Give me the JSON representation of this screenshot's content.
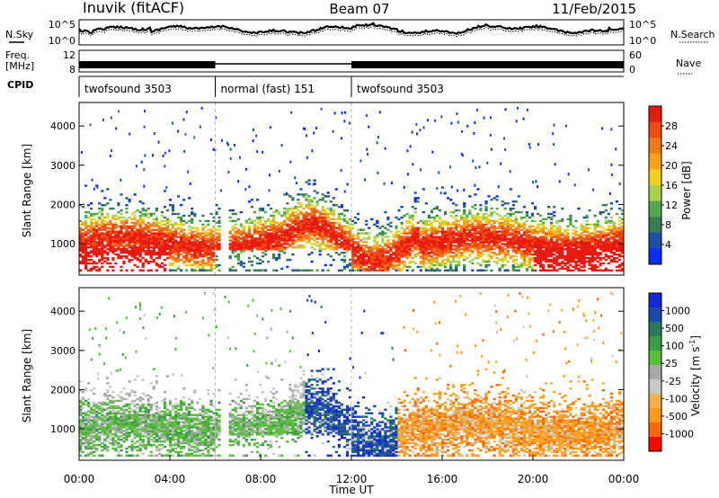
{
  "header": {
    "station": "Inuvik (fitACF)",
    "beam": "Beam 07",
    "date": "11/Feb/2015"
  },
  "colors": {
    "background": "#ffffff",
    "axis": "#000000",
    "power_scale": [
      "#0a2cff",
      "#1d4fa3",
      "#3b7a55",
      "#52a84a",
      "#a8d24a",
      "#f0d21a",
      "#f6a21a",
      "#f07a1a",
      "#ee4a14",
      "#e81a10"
    ],
    "velocity_scale": [
      "#ff0000",
      "#ff6a00",
      "#ff9a1a",
      "#f0b04a",
      "#c8c8c8",
      "#a8a8a8",
      "#58c038",
      "#3c9a48",
      "#2b7860",
      "#1d4aa8",
      "#1428d8"
    ]
  },
  "chart_data": [
    {
      "type": "line",
      "name": "noise-panel",
      "left_labels": [
        "N.Sky"
      ],
      "right_labels": [
        "N.Search"
      ],
      "left_ticks": [
        "10^5",
        "10^0"
      ],
      "right_ticks": [
        "10^5",
        "10^0"
      ],
      "x_range_hours": [
        0,
        24
      ]
    },
    {
      "type": "line",
      "name": "frequency-panel",
      "left_labels": [
        "Freq.",
        "[MHz]"
      ],
      "right_labels": [
        "Nave"
      ],
      "left_ticks": [
        "12",
        "8"
      ],
      "right_ticks": [
        "60",
        "0"
      ],
      "x_range_hours": [
        0,
        24
      ]
    },
    {
      "type": "table",
      "name": "cpid-bar",
      "label": "CPID",
      "segments": [
        {
          "start": 0,
          "end": 6,
          "text": "twofsound 3503"
        },
        {
          "start": 6,
          "end": 12,
          "text": "normal (fast) 151"
        },
        {
          "start": 12,
          "end": 24,
          "text": "twofsound 3503"
        }
      ]
    },
    {
      "type": "heatmap",
      "name": "power-panel",
      "xlabel": "",
      "ylabel": "Slant Range [km]",
      "x_range_hours": [
        0,
        24
      ],
      "ylim": [
        200,
        4600
      ],
      "yticks": [
        "1000",
        "2000",
        "3000",
        "4000"
      ],
      "colorbar_label": "Power [dB]",
      "colorbar_ticks": [
        "28",
        "24",
        "20",
        "16",
        "12",
        "8",
        "4"
      ],
      "colorbar_range": [
        0,
        30
      ]
    },
    {
      "type": "heatmap",
      "name": "velocity-panel",
      "xlabel": "Time UT",
      "ylabel": "Slant Range [km]",
      "x_range_hours": [
        0,
        24
      ],
      "ylim": [
        200,
        4600
      ],
      "yticks": [
        "1000",
        "2000",
        "3000",
        "4000"
      ],
      "xticks": [
        "00:00",
        "04:00",
        "08:00",
        "12:00",
        "16:00",
        "20:00",
        "00:00"
      ],
      "colorbar_label": "Velocity [m s",
      "colorbar_label_exp": "-1",
      "colorbar_ticks": [
        "1000",
        "500",
        "100",
        "25",
        "-25",
        "-100",
        "-500",
        "-1000"
      ]
    }
  ]
}
